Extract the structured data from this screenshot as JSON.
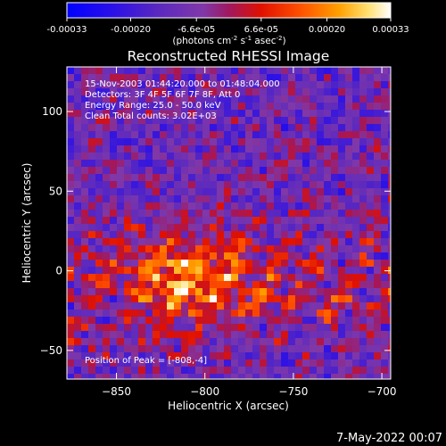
{
  "colorbar": {
    "tick_labels": [
      "-0.00033",
      "-0.00020",
      "-6.6e-05",
      "6.6e-05",
      "0.00020",
      "0.00033"
    ],
    "tick_values": [
      -0.00033,
      -0.0002,
      -6.6e-05,
      6.6e-05,
      0.0002,
      0.00033
    ],
    "range": [
      -0.00033,
      0.00033
    ],
    "unit_main": "(photons cm",
    "unit_exp1": "-2",
    "unit_mid": " s",
    "unit_exp2": "-1",
    "unit_end": " asec",
    "unit_exp3": "-2",
    "unit_close": ")",
    "colormap": [
      "#0000ff",
      "#3a1ae0",
      "#6b33b0",
      "#9040a0",
      "#c01010",
      "#ff4000",
      "#ff9a00",
      "#ffff80",
      "#ffffff"
    ]
  },
  "chart_data": {
    "type": "heatmap",
    "title": "Reconstructed RHESSI Image",
    "xlabel": "Heliocentric X (arcsec)",
    "ylabel": "Heliocentric Y (arcsec)",
    "xlim": [
      -878,
      -695
    ],
    "ylim": [
      -68,
      128
    ],
    "x_ticks": [
      -850,
      -800,
      -750,
      -700
    ],
    "y_ticks": [
      -50,
      0,
      50,
      100
    ],
    "x_tick_labels": [
      "−850",
      "−800",
      "−750",
      "−700"
    ],
    "y_tick_labels": [
      "−50",
      "0",
      "50",
      "100"
    ],
    "annotations": [
      "15-Nov-2003 01:44:20.000 to 01:48:04.000",
      "Detectors: 3F 4F 5F 6F 7F 8F, Att 0",
      "Energy Range: 25.0 - 50.0 keV",
      "Clean     Total counts: 3.02E+03"
    ],
    "peak_label": "Position of Peak = [-808,-4]",
    "peak_position": [
      -808,
      -4
    ],
    "grid": false
  },
  "footer": {
    "date_stamp": "7-May-2022 00:07"
  }
}
